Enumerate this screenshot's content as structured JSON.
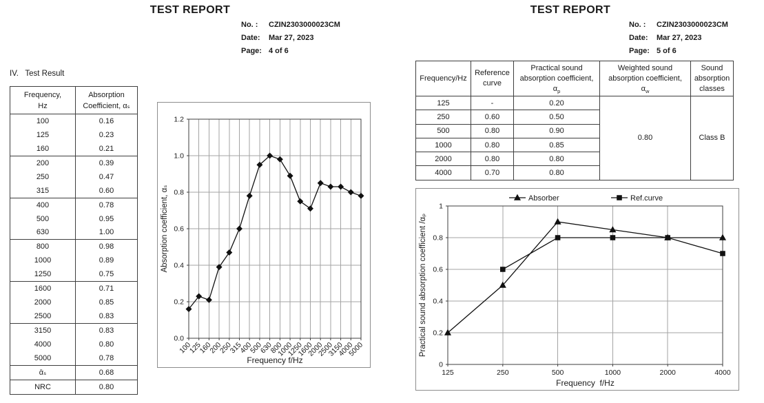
{
  "page4": {
    "title": "TEST REPORT",
    "info": {
      "no_label": "No. :",
      "no_value": "CZIN2303000023CM",
      "date_label": "Date:",
      "date_value": "Mar 27, 2023",
      "page_label": "Page:",
      "page_value": "4 of 6"
    },
    "section_heading": "IV.   Test Result",
    "table": {
      "col1_line1": "Frequency,",
      "col1_line2": "Hz",
      "col2_line1": "Absorption",
      "col2_line2": "Coefficient, αₛ",
      "rows": [
        {
          "freq": "100",
          "value": "0.16",
          "group_start": false
        },
        {
          "freq": "125",
          "value": "0.23",
          "group_start": false
        },
        {
          "freq": "160",
          "value": "0.21",
          "group_start": false
        },
        {
          "freq": "200",
          "value": "0.39",
          "group_start": true
        },
        {
          "freq": "250",
          "value": "0.47",
          "group_start": false
        },
        {
          "freq": "315",
          "value": "0.60",
          "group_start": false
        },
        {
          "freq": "400",
          "value": "0.78",
          "group_start": true
        },
        {
          "freq": "500",
          "value": "0.95",
          "group_start": false
        },
        {
          "freq": "630",
          "value": "1.00",
          "group_start": false
        },
        {
          "freq": "800",
          "value": "0.98",
          "group_start": true
        },
        {
          "freq": "1000",
          "value": "0.89",
          "group_start": false
        },
        {
          "freq": "1250",
          "value": "0.75",
          "group_start": false
        },
        {
          "freq": "1600",
          "value": "0.71",
          "group_start": true
        },
        {
          "freq": "2000",
          "value": "0.85",
          "group_start": false
        },
        {
          "freq": "2500",
          "value": "0.83",
          "group_start": false
        },
        {
          "freq": "3150",
          "value": "0.83",
          "group_start": true
        },
        {
          "freq": "4000",
          "value": "0.80",
          "group_start": false
        },
        {
          "freq": "5000",
          "value": "0.78",
          "group_start": false
        },
        {
          "freq": "ᾱₛ",
          "value": "0.68",
          "group_start": true
        },
        {
          "freq": "NRC",
          "value": "0.80",
          "group_start": true
        }
      ]
    }
  },
  "page5": {
    "title": "TEST REPORT",
    "info": {
      "no_label": "No. :",
      "no_value": "CZIN2303000023CM",
      "date_label": "Date:",
      "date_value": "Mar 27, 2023",
      "page_label": "Page:",
      "page_value": "5 of 6"
    },
    "table": {
      "h_frequency": "Frequency/Hz",
      "h_reference_1": "Reference",
      "h_reference_2": "curve",
      "h_practical_1": "Practical sound",
      "h_practical_2": "absorption coefficient,",
      "h_practical_sym": "α",
      "h_practical_sub": "p",
      "h_weighted_1": "Weighted sound",
      "h_weighted_2": "absorption coefficient,",
      "h_weighted_sym": "α",
      "h_weighted_sub": "w",
      "h_class_1": "Sound",
      "h_class_2": "absorption",
      "h_class_3": "classes",
      "rows": [
        {
          "freq": "125",
          "ref": "-",
          "practical": "0.20"
        },
        {
          "freq": "250",
          "ref": "0.60",
          "practical": "0.50"
        },
        {
          "freq": "500",
          "ref": "0.80",
          "practical": "0.90"
        },
        {
          "freq": "1000",
          "ref": "0.80",
          "practical": "0.85"
        },
        {
          "freq": "2000",
          "ref": "0.80",
          "practical": "0.80"
        },
        {
          "freq": "4000",
          "ref": "0.70",
          "practical": "0.80"
        }
      ],
      "alpha_w_value": "0.80",
      "sound_class": "Class B"
    }
  },
  "chart_data": [
    {
      "type": "line",
      "title": "",
      "categories": [
        "100",
        "125",
        "160",
        "200",
        "250",
        "315",
        "400",
        "500",
        "630",
        "800",
        "1000",
        "1250",
        "1600",
        "2000",
        "2500",
        "3150",
        "4000",
        "5000"
      ],
      "series": [
        {
          "name": "Absorption coefficient",
          "marker": "diamond",
          "color": "#111111",
          "values": [
            0.16,
            0.23,
            0.21,
            0.39,
            0.47,
            0.6,
            0.78,
            0.95,
            1.0,
            0.98,
            0.89,
            0.75,
            0.71,
            0.85,
            0.83,
            0.83,
            0.8,
            0.78
          ]
        }
      ],
      "xlabel": "Frequency f/Hz",
      "ylabel": "Absorption coefficient, αₛ",
      "ylim": [
        0,
        1.2
      ],
      "ytick_step": 0.2,
      "y_tick_decimals": 1,
      "x_label_rotation": -45,
      "grid": true,
      "legend": false
    },
    {
      "type": "line",
      "title": "",
      "categories": [
        "125",
        "250",
        "500",
        "1000",
        "2000",
        "4000"
      ],
      "series": [
        {
          "name": "Absorber",
          "marker": "triangle",
          "color": "#111111",
          "values": [
            0.2,
            0.5,
            0.9,
            0.85,
            0.8,
            0.8
          ]
        },
        {
          "name": "Ref.curve",
          "marker": "square",
          "color": "#111111",
          "values": [
            null,
            0.6,
            0.8,
            0.8,
            0.8,
            0.7
          ]
        }
      ],
      "xlabel": "Frequency  f/Hz",
      "ylabel": "Practical sound absorption coefficient /αₚ",
      "ylim": [
        0,
        1
      ],
      "ytick_step": 0.2,
      "y_tick_decimals": 0,
      "x_label_rotation": 0,
      "grid": true,
      "legend": true,
      "legend_position": "top"
    }
  ]
}
